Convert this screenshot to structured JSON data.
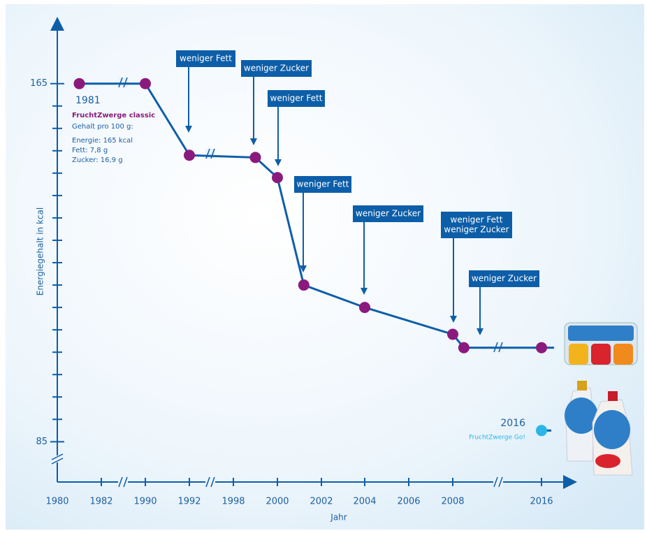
{
  "chart_data": {
    "type": "line",
    "x_label": "Jahr",
    "y_label": "Energiegehalt in kcal",
    "xticks": [
      1980,
      1982,
      1990,
      1992,
      1998,
      2000,
      2002,
      2004,
      2006,
      2008,
      2016
    ],
    "ylim": [
      76,
      179
    ],
    "yticks": [
      85,
      165
    ],
    "yminorticks": [
      90,
      95,
      100,
      105,
      110,
      115,
      120,
      125,
      130,
      135,
      140,
      145,
      150,
      155,
      160
    ],
    "series": [
      {
        "name": "FruchtZwerge classic",
        "color": "#8b1a7e",
        "line_color": "#0d5ea8",
        "x": [
          1981,
          1990,
          1992,
          1999,
          2000,
          2001.2,
          2004,
          2008,
          2009,
          2016
        ],
        "values": [
          165,
          165,
          149,
          148.5,
          144,
          120,
          115,
          109,
          106,
          106
        ]
      },
      {
        "name": "FruchtZwerge Go!",
        "color": "#2bb5e8",
        "line_color": "#0d5ea8",
        "x": [
          2016
        ],
        "values": [
          87.5
        ]
      }
    ],
    "info_classic": {
      "year": "1981",
      "lines": [
        "Gehalt pro 100 g:",
        "Energie: 165 kcal",
        "Fett: 7,8 g",
        "Zucker: 16,9 g"
      ]
    },
    "info_go": {
      "year": "2016"
    },
    "annotations": [
      {
        "lines": [
          "weniger Fett"
        ]
      },
      {
        "lines": [
          "weniger Zucker"
        ]
      },
      {
        "lines": [
          "weniger Fett"
        ]
      },
      {
        "lines": [
          "weniger Fett"
        ]
      },
      {
        "lines": [
          "weniger Zucker"
        ]
      },
      {
        "lines": [
          "weniger Fett",
          "weniger Zucker"
        ]
      },
      {
        "lines": [
          "weniger Zucker"
        ]
      }
    ]
  }
}
